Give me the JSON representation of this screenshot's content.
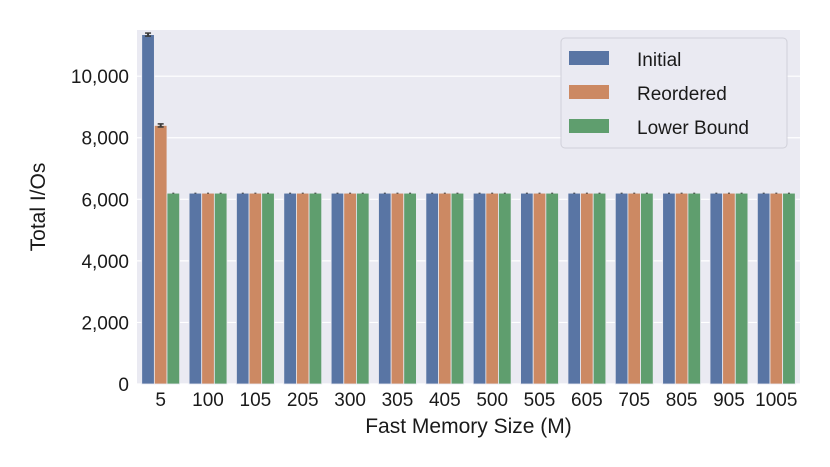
{
  "chart_data": {
    "type": "bar",
    "xlabel": "Fast Memory Size (M)",
    "ylabel": "Total I/Os",
    "categories": [
      "5",
      "100",
      "105",
      "205",
      "300",
      "305",
      "405",
      "500",
      "505",
      "605",
      "705",
      "805",
      "905",
      "1005"
    ],
    "series": [
      {
        "name": "Initial",
        "color": "#5975a4",
        "values": [
          11350,
          6200,
          6200,
          6200,
          6200,
          6200,
          6200,
          6200,
          6200,
          6200,
          6200,
          6200,
          6200,
          6200
        ]
      },
      {
        "name": "Reordered",
        "color": "#cc8963",
        "values": [
          8400,
          6200,
          6200,
          6200,
          6200,
          6200,
          6200,
          6200,
          6200,
          6200,
          6200,
          6200,
          6200,
          6200
        ]
      },
      {
        "name": "Lower Bound",
        "color": "#5f9e6e",
        "values": [
          6200,
          6200,
          6200,
          6200,
          6200,
          6200,
          6200,
          6200,
          6200,
          6200,
          6200,
          6200,
          6200,
          6200
        ]
      }
    ],
    "error_bars": {
      "Initial": {
        "5": 50
      },
      "Reordered": {
        "5": 50
      }
    },
    "ylim": [
      0,
      11500
    ],
    "yticks": [
      0,
      2000,
      4000,
      6000,
      8000,
      10000
    ],
    "ytick_labels": [
      "0",
      "2,000",
      "4,000",
      "6,000",
      "8,000",
      "10,000"
    ],
    "grid": true,
    "legend": "top-right",
    "background": "#eaeaf2"
  }
}
